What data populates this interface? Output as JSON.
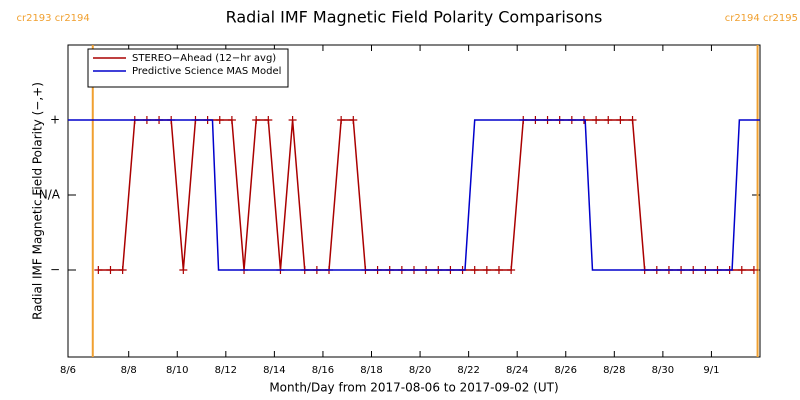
{
  "chart_data": {
    "type": "line",
    "title": "Radial IMF Magnetic Field Polarity Comparisons",
    "xlabel": "Month/Day from 2017-08-06 to 2017-09-02 (UT)",
    "ylabel": "Radial IMF Magnetic Field Polarity (−,+)",
    "xlim": [
      5.5,
      34
    ],
    "ylim": [
      -2.16,
      2
    ],
    "xticks": [
      {
        "value": 5.5,
        "label": "8/6"
      },
      {
        "value": 8,
        "label": "8/8"
      },
      {
        "value": 10,
        "label": "8/10"
      },
      {
        "value": 12,
        "label": "8/12"
      },
      {
        "value": 14,
        "label": "8/14"
      },
      {
        "value": 16,
        "label": "8/16"
      },
      {
        "value": 18,
        "label": "8/18"
      },
      {
        "value": 20,
        "label": "8/20"
      },
      {
        "value": 22,
        "label": "8/22"
      },
      {
        "value": 24,
        "label": "8/24"
      },
      {
        "value": 26,
        "label": "8/26"
      },
      {
        "value": 28,
        "label": "8/28"
      },
      {
        "value": 30,
        "label": "8/30"
      },
      {
        "value": 32,
        "label": "9/1"
      }
    ],
    "yticks": [
      {
        "value": -1,
        "label": "−"
      },
      {
        "value": 0,
        "label": "N/A"
      },
      {
        "value": 1,
        "label": "+"
      }
    ],
    "legend": "upper left",
    "annotations": [
      {
        "x": 6.52,
        "label": "cr2193 cr2194",
        "color": "#f0a030"
      },
      {
        "x": 33.9,
        "label": "cr2194 cr2195",
        "color": "#f0a030"
      }
    ],
    "series": [
      {
        "name": "STEREO−Ahead (12−hr avg)",
        "color": "#aa0000",
        "markers": true,
        "x": [
          6.75,
          7.25,
          7.75,
          8.25,
          8.75,
          9.25,
          9.75,
          10.25,
          10.75,
          11.25,
          11.75,
          12.25,
          12.75,
          13.25,
          13.75,
          14.25,
          14.75,
          15.25,
          15.75,
          16.25,
          16.75,
          17.25,
          17.75,
          18.25,
          18.75,
          19.25,
          19.75,
          20.25,
          20.75,
          21.25,
          21.75,
          22.25,
          22.75,
          23.25,
          23.75,
          24.25,
          24.75,
          25.25,
          25.75,
          26.25,
          26.75,
          27.25,
          27.75,
          28.25,
          28.75,
          29.25,
          29.75,
          30.25,
          30.75,
          31.25,
          31.75,
          32.25,
          32.75,
          33.25,
          33.75
        ],
        "values": [
          -1,
          -1,
          -1,
          1,
          1,
          1,
          1,
          -1,
          1,
          1,
          1,
          1,
          -1,
          1,
          1,
          -1,
          1,
          -1,
          -1,
          -1,
          1,
          1,
          -1,
          -1,
          -1,
          -1,
          -1,
          -1,
          -1,
          -1,
          -1,
          -1,
          -1,
          -1,
          -1,
          1,
          1,
          1,
          1,
          1,
          1,
          1,
          1,
          1,
          1,
          -1,
          -1,
          -1,
          -1,
          -1,
          -1,
          -1,
          -1,
          -1,
          -1
        ]
      },
      {
        "name": "Predictive Science MAS Model",
        "color": "#0000cc",
        "markers": false,
        "x": [
          5.5,
          11.45,
          11.7,
          21.85,
          22.25,
          26.8,
          27.1,
          32.85,
          33.15,
          34
        ],
        "values": [
          1,
          1,
          -1,
          -1,
          1,
          1,
          -1,
          -1,
          1,
          1
        ]
      }
    ]
  }
}
